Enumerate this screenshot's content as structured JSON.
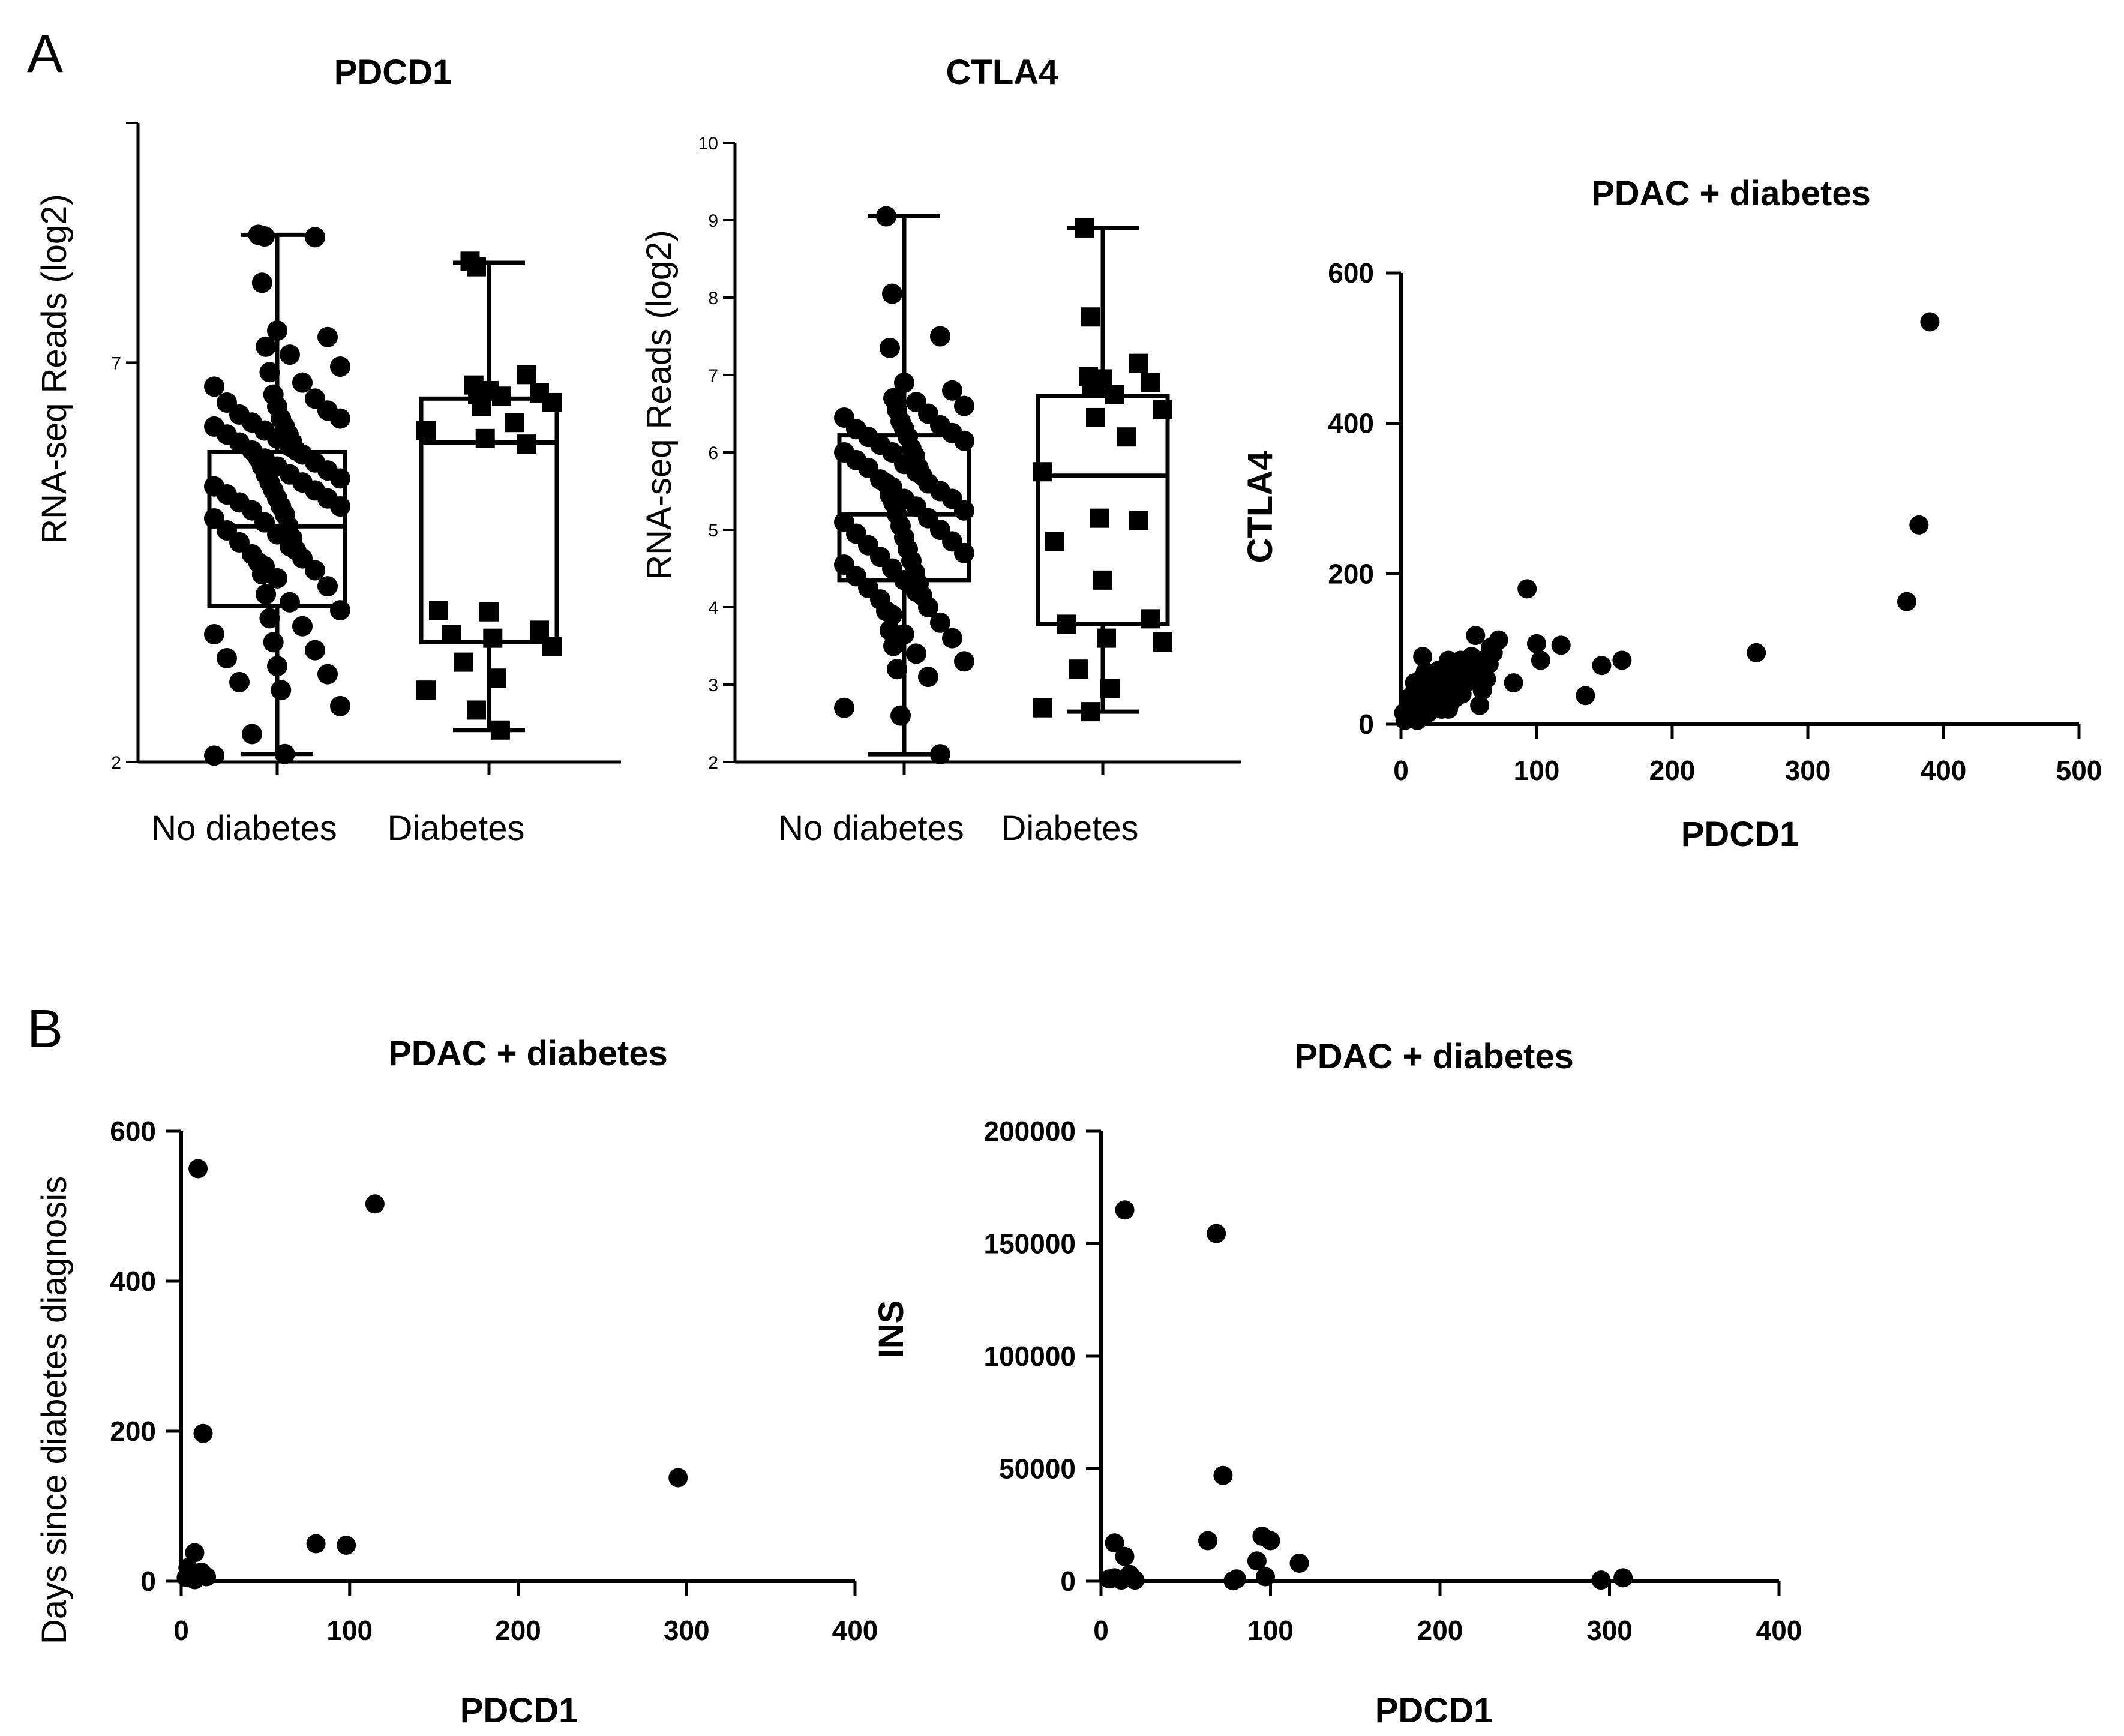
{
  "panels": [
    {
      "letter": "A"
    },
    {
      "letter": "B"
    }
  ],
  "chart_data": [
    {
      "type": "box",
      "title": "PDCD1",
      "ylabel": "RNA-seq Reads (log2)",
      "ylim": [
        2,
        10
      ],
      "yticks": [
        2,
        7
      ],
      "categories": [
        "No diabetes",
        "Diabetes"
      ],
      "series": [
        {
          "name": "No diabetes",
          "marker": "circle",
          "whisker_low": 2.1,
          "q1": 3.95,
          "median": 4.95,
          "q3": 5.88,
          "whisker_high": 8.6,
          "points": [
            8.6,
            8.58,
            8.57,
            8.0,
            7.4,
            7.32,
            7.2,
            7.1,
            6.95,
            6.88,
            6.75,
            6.7,
            6.6,
            6.55,
            6.5,
            6.45,
            6.4,
            6.35,
            6.3,
            6.3,
            6.25,
            6.2,
            6.2,
            6.15,
            6.1,
            6.1,
            6.05,
            6.0,
            6.0,
            5.95,
            5.9,
            5.9,
            5.85,
            5.8,
            5.8,
            5.75,
            5.7,
            5.7,
            5.65,
            5.6,
            5.6,
            5.55,
            5.5,
            5.5,
            5.45,
            5.4,
            5.4,
            5.35,
            5.3,
            5.3,
            5.25,
            5.2,
            5.2,
            5.15,
            5.1,
            5.05,
            5.0,
            4.95,
            4.9,
            4.85,
            4.8,
            4.75,
            4.7,
            4.65,
            4.6,
            4.55,
            4.5,
            4.45,
            4.4,
            4.35,
            4.3,
            4.2,
            4.1,
            4.0,
            3.9,
            3.8,
            3.7,
            3.6,
            3.5,
            3.4,
            3.3,
            3.2,
            3.1,
            3.0,
            2.9,
            2.7,
            2.35,
            2.1,
            2.08
          ]
        },
        {
          "name": "Diabetes",
          "marker": "square",
          "whisker_low": 2.4,
          "q1": 3.5,
          "median": 6.0,
          "q3": 6.55,
          "whisker_high": 8.25,
          "points": [
            8.27,
            8.2,
            6.85,
            6.72,
            6.65,
            6.62,
            6.6,
            6.58,
            6.5,
            6.45,
            6.25,
            6.15,
            6.05,
            5.98,
            3.9,
            3.88,
            3.65,
            3.6,
            3.55,
            3.45,
            3.25,
            3.05,
            2.9,
            2.65,
            2.4
          ]
        }
      ]
    },
    {
      "type": "box",
      "title": "CTLA4",
      "ylabel": "RNA-seq Reads (log2)",
      "ylim": [
        2,
        10
      ],
      "yticks": [
        2,
        3,
        4,
        5,
        6,
        7,
        8,
        9,
        10
      ],
      "categories": [
        "No diabetes",
        "Diabetes"
      ],
      "series": [
        {
          "name": "No diabetes",
          "marker": "circle",
          "whisker_low": 2.1,
          "q1": 4.35,
          "median": 5.2,
          "q3": 6.22,
          "whisker_high": 9.05,
          "points": [
            9.05,
            8.05,
            7.5,
            7.35,
            6.9,
            6.8,
            6.7,
            6.65,
            6.6,
            6.55,
            6.5,
            6.45,
            6.4,
            6.35,
            6.3,
            6.3,
            6.25,
            6.2,
            6.2,
            6.15,
            6.1,
            6.05,
            6.0,
            6.0,
            5.95,
            5.9,
            5.85,
            5.8,
            5.8,
            5.75,
            5.7,
            5.65,
            5.6,
            5.6,
            5.55,
            5.5,
            5.45,
            5.4,
            5.4,
            5.35,
            5.3,
            5.25,
            5.2,
            5.15,
            5.1,
            5.05,
            5.0,
            4.95,
            4.9,
            4.85,
            4.8,
            4.75,
            4.7,
            4.65,
            4.6,
            4.55,
            4.5,
            4.45,
            4.4,
            4.35,
            4.3,
            4.25,
            4.2,
            4.15,
            4.1,
            4.0,
            3.95,
            3.9,
            3.8,
            3.7,
            3.65,
            3.6,
            3.5,
            3.4,
            3.3,
            3.2,
            3.1,
            2.7,
            2.6,
            2.1
          ]
        },
        {
          "name": "Diabetes",
          "marker": "square",
          "whisker_low": 2.65,
          "q1": 3.78,
          "median": 5.7,
          "q3": 6.73,
          "whisker_high": 8.9,
          "points": [
            8.9,
            7.75,
            7.15,
            6.98,
            6.95,
            6.9,
            6.85,
            6.75,
            6.55,
            6.45,
            6.2,
            5.75,
            5.15,
            5.12,
            4.85,
            4.35,
            3.85,
            3.78,
            3.6,
            3.55,
            3.2,
            2.95,
            2.7,
            2.65
          ]
        }
      ]
    },
    {
      "type": "scatter",
      "title": "PDAC + diabetes",
      "xlabel": "PDCD1",
      "ylabel": "CTLA4",
      "xlim": [
        0,
        500
      ],
      "ylim": [
        0,
        600
      ],
      "xticks": [
        0,
        100,
        200,
        300,
        400,
        500
      ],
      "yticks": [
        0,
        200,
        400,
        600
      ],
      "points": [
        [
          390,
          535
        ],
        [
          382,
          265
        ],
        [
          373,
          163
        ],
        [
          262,
          95
        ],
        [
          163,
          85
        ],
        [
          148,
          78
        ],
        [
          136,
          38
        ],
        [
          118,
          105
        ],
        [
          103,
          85
        ],
        [
          100,
          107
        ],
        [
          93,
          180
        ],
        [
          83,
          55
        ],
        [
          72,
          112
        ],
        [
          68,
          95
        ],
        [
          65,
          80
        ],
        [
          63,
          60
        ],
        [
          60,
          45
        ],
        [
          58,
          25
        ],
        [
          55,
          118
        ],
        [
          52,
          90
        ],
        [
          50,
          70
        ],
        [
          48,
          55
        ],
        [
          45,
          40
        ],
        [
          42,
          80
        ],
        [
          40,
          65
        ],
        [
          38,
          50
        ],
        [
          37,
          30
        ],
        [
          35,
          20
        ],
        [
          33,
          75
        ],
        [
          31,
          60
        ],
        [
          29,
          45
        ],
        [
          27,
          35
        ],
        [
          25,
          55
        ],
        [
          23,
          40
        ],
        [
          21,
          25
        ],
        [
          20,
          15
        ],
        [
          18,
          70
        ],
        [
          16,
          90
        ],
        [
          15,
          60
        ],
        [
          14,
          45
        ],
        [
          13,
          30
        ],
        [
          12,
          20
        ],
        [
          11,
          10
        ],
        [
          10,
          55
        ],
        [
          9,
          40
        ],
        [
          8,
          25
        ],
        [
          7,
          15
        ],
        [
          6,
          35
        ],
        [
          5,
          20
        ],
        [
          4,
          10
        ],
        [
          3,
          5
        ],
        [
          2,
          15
        ],
        [
          25,
          28
        ],
        [
          28,
          72
        ],
        [
          44,
          85
        ],
        [
          48,
          78
        ],
        [
          53,
          62
        ],
        [
          57,
          70
        ],
        [
          60,
          85
        ],
        [
          66,
          102
        ],
        [
          18,
          40
        ],
        [
          22,
          50
        ],
        [
          30,
          20
        ],
        [
          40,
          35
        ],
        [
          35,
          85
        ],
        [
          12,
          5
        ]
      ]
    },
    {
      "type": "scatter",
      "title": "PDAC + diabetes",
      "xlabel": "PDCD1",
      "ylabel": "Days since diabetes diagnosis",
      "xlim": [
        0,
        400
      ],
      "ylim": [
        0,
        600
      ],
      "xticks": [
        0,
        100,
        200,
        300,
        400
      ],
      "yticks": [
        0,
        200,
        400,
        600
      ],
      "points": [
        [
          10,
          550
        ],
        [
          115,
          503
        ],
        [
          13,
          197
        ],
        [
          295,
          138
        ],
        [
          80,
          50
        ],
        [
          98,
          48
        ],
        [
          8,
          38
        ],
        [
          4,
          18
        ],
        [
          12,
          12
        ],
        [
          15,
          6
        ],
        [
          8,
          2
        ],
        [
          3,
          5
        ]
      ]
    },
    {
      "type": "scatter",
      "title": "PDAC + diabetes",
      "xlabel": "PDCD1",
      "ylabel": "INS",
      "xlim": [
        0,
        400
      ],
      "ylim": [
        0,
        200000
      ],
      "xticks": [
        0,
        100,
        200,
        300,
        400
      ],
      "yticks": [
        0,
        50000,
        100000,
        150000,
        200000
      ],
      "points": [
        [
          14,
          165000
        ],
        [
          68,
          154500
        ],
        [
          72,
          47000
        ],
        [
          8,
          17000
        ],
        [
          63,
          18000
        ],
        [
          95,
          20000
        ],
        [
          100,
          18000
        ],
        [
          14,
          11000
        ],
        [
          92,
          9000
        ],
        [
          117,
          8000
        ],
        [
          17,
          3000
        ],
        [
          8,
          1500
        ],
        [
          80,
          1000
        ],
        [
          97,
          2000
        ],
        [
          308,
          1500
        ],
        [
          295,
          500
        ],
        [
          12,
          500
        ],
        [
          5,
          1000
        ],
        [
          20,
          500
        ],
        [
          78,
          200
        ]
      ]
    }
  ]
}
